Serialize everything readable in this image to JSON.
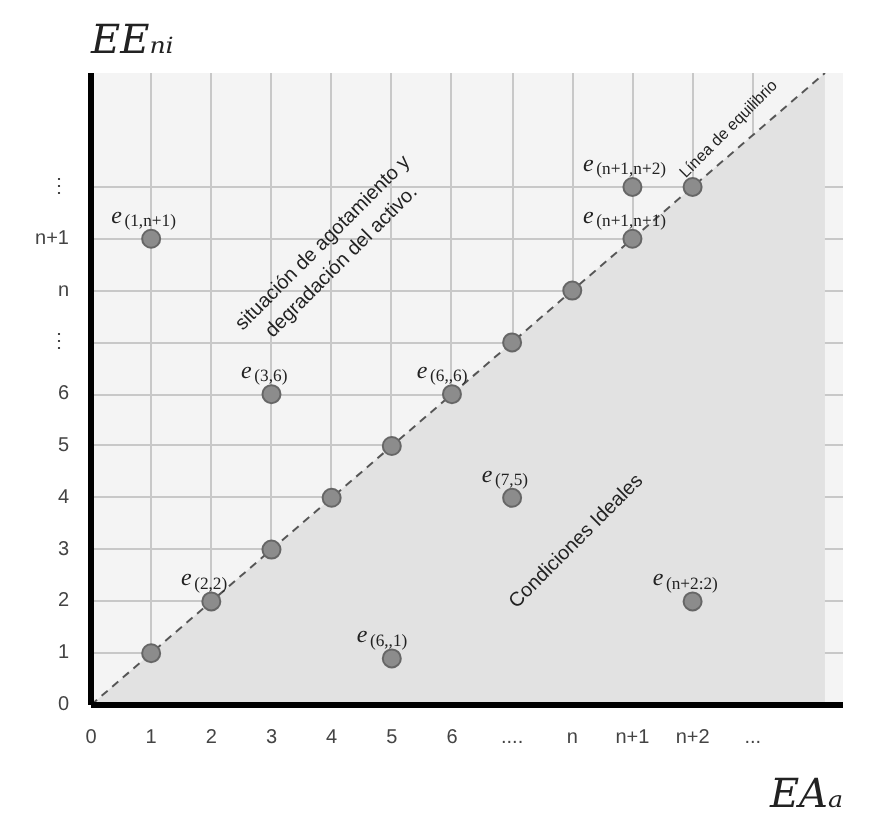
{
  "chart_data": {
    "type": "scatter",
    "xlabel": "EAₐ",
    "ylabel": "EEₙᵢ",
    "series": [
      {
        "type": "area",
        "x": [
          0,
          12.2
        ],
        "values": [
          0,
          12.2
        ],
        "color": "#e2e2e2",
        "line_style": "dashed"
      },
      {
        "x": [
          1,
          2,
          3,
          4,
          5,
          6,
          7,
          8,
          9,
          10,
          1,
          3,
          7,
          10,
          5,
          9
        ],
        "values": [
          1,
          2,
          3,
          4,
          5,
          6,
          7,
          8,
          9,
          10,
          9,
          6,
          4,
          2,
          0.9,
          10
        ],
        "color": "#8c8c8c",
        "marker": "circle"
      }
    ],
    "grid": true,
    "xlim": [
      0,
      12.5
    ],
    "ylim": [
      0,
      12.2
    ],
    "xticks": [
      0,
      1,
      2,
      3,
      4,
      5,
      6,
      {
        "value": 7,
        "label": "...."
      },
      {
        "value": 8,
        "label": "n"
      },
      {
        "value": 9,
        "label": "n+1"
      },
      {
        "value": 10,
        "label": "n+2"
      },
      {
        "value": 11,
        "label": "..."
      }
    ],
    "yticks": [
      0,
      1,
      2,
      3,
      4,
      5,
      6,
      {
        "value": 7,
        "label": "⋮"
      },
      {
        "value": 8,
        "label": "n"
      },
      {
        "value": 9,
        "label": "n+1"
      },
      {
        "value": 10,
        "label": "⋮"
      }
    ],
    "annotations": [
      {
        "text": "e$_{(1,n+1)}$",
        "x": 1,
        "y": 9
      },
      {
        "text": "e$_{(3,6)}$",
        "x": 3,
        "y": 6
      },
      {
        "text": "e$_{(6,,6)}$",
        "x": 6,
        "y": 6
      },
      {
        "text": "e$_{(7,5)}$",
        "x": 7,
        "y": 4
      },
      {
        "text": "e$_{(2,2)}$",
        "x": 2,
        "y": 2
      },
      {
        "text": "e$_{(6,,1)}$",
        "x": 5,
        "y": 0.9
      },
      {
        "text": "e$_{(n+2:2)}$",
        "x": 10,
        "y": 2
      },
      {
        "text": "e$_{(n+1,n+2)}$",
        "x": 9,
        "y": 10
      },
      {
        "text": "e$_{(n+1,n+1)}$",
        "x": 9,
        "y": 9
      },
      "situación de agotamiento y\ndegradación del activo.",
      "Condiciones Ideales",
      "Línea de equilibrio"
    ]
  }
}
